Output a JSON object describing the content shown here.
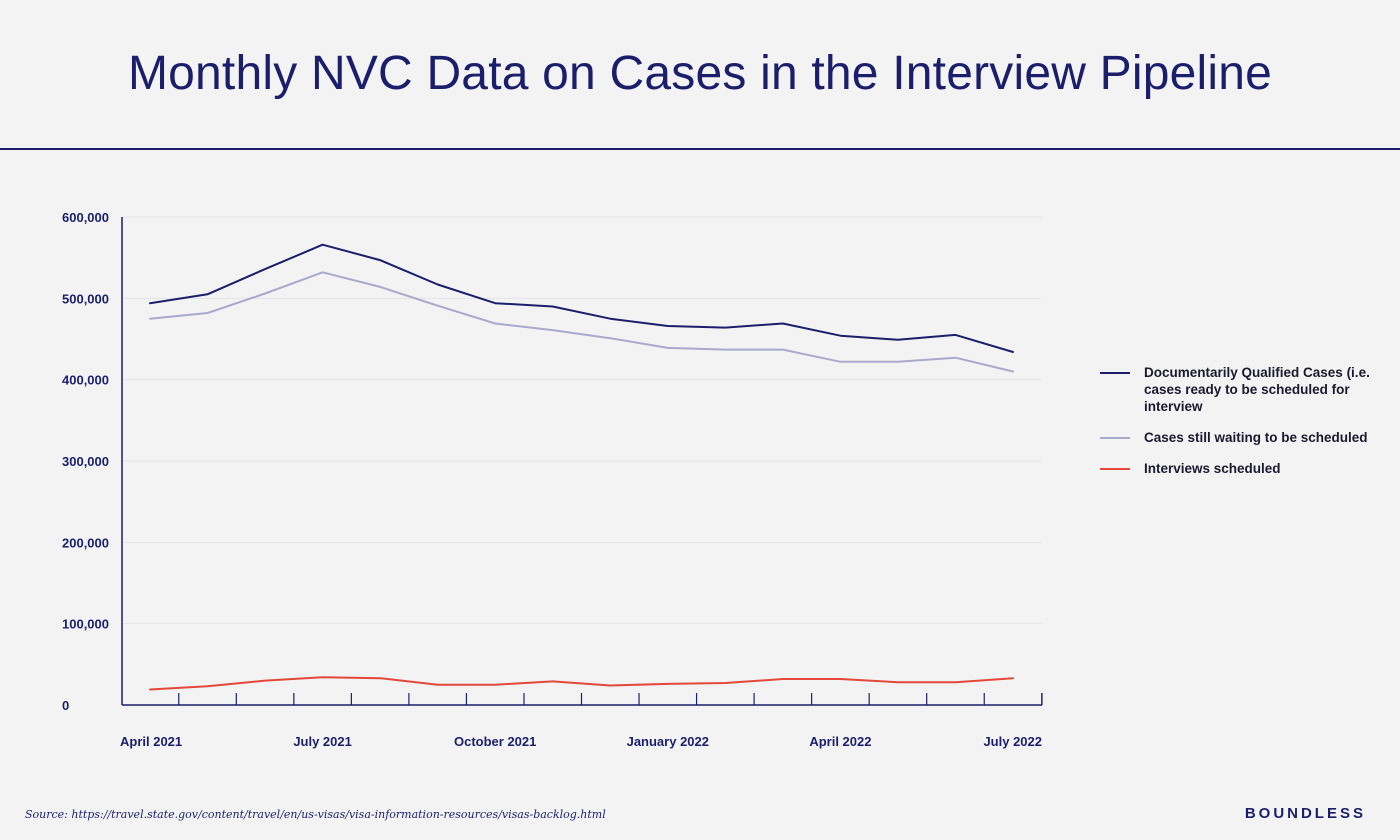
{
  "header": {
    "title": "Monthly NVC Data on Cases in the Interview Pipeline"
  },
  "chart_data": {
    "type": "line",
    "title": "Monthly NVC Data on Cases in the Interview Pipeline",
    "xlabel": "",
    "ylabel": "",
    "ylim": [
      0,
      600000
    ],
    "yticks": [
      0,
      100000,
      200000,
      300000,
      400000,
      500000,
      600000
    ],
    "ytick_labels": [
      "0",
      "100,000",
      "200,000",
      "300,000",
      "400,000",
      "500,000",
      "600,000"
    ],
    "categories": [
      "Apr 2021",
      "May 2021",
      "Jun 2021",
      "Jul 2021",
      "Aug 2021",
      "Sep 2021",
      "Oct 2021",
      "Nov 2021",
      "Dec 2021",
      "Jan 2022",
      "Feb 2022",
      "Mar 2022",
      "Apr 2022",
      "May 2022",
      "Jun 2022",
      "Jul 2022"
    ],
    "xtick_labels": [
      {
        "index": 0,
        "label": "April 2021"
      },
      {
        "index": 3,
        "label": "July 2021"
      },
      {
        "index": 6,
        "label": "October 2021"
      },
      {
        "index": 9,
        "label": "January 2022"
      },
      {
        "index": 12,
        "label": "April 2022"
      },
      {
        "index": 15,
        "label": "July 2022"
      }
    ],
    "grid": true,
    "legend_position": "right",
    "series": [
      {
        "name": "Documentarily Qualified Cases (i.e. cases ready to be scheduled for interview",
        "color": "#1b1f6b",
        "values": [
          494000,
          505000,
          536000,
          566000,
          547000,
          517000,
          494000,
          490000,
          475000,
          466000,
          464000,
          469000,
          454000,
          449000,
          455000,
          434000
        ]
      },
      {
        "name": "Cases still waiting to be scheduled",
        "color": "#a9a9cc",
        "values": [
          475000,
          482000,
          506000,
          532000,
          514000,
          491000,
          469000,
          461000,
          451000,
          439000,
          437000,
          437000,
          422000,
          422000,
          427000,
          410000
        ]
      },
      {
        "name": "Interviews scheduled",
        "color": "#e3483a",
        "values": [
          19000,
          23000,
          30000,
          34000,
          33000,
          25000,
          25000,
          29000,
          24000,
          26000,
          27000,
          32000,
          32000,
          28000,
          28000,
          33000
        ]
      }
    ]
  },
  "footer": {
    "source": "Source: https://travel.state.gov/content/travel/en/us-visas/visa-information-resources/visas-backlog.html",
    "brand": "BOUNDLESS"
  }
}
